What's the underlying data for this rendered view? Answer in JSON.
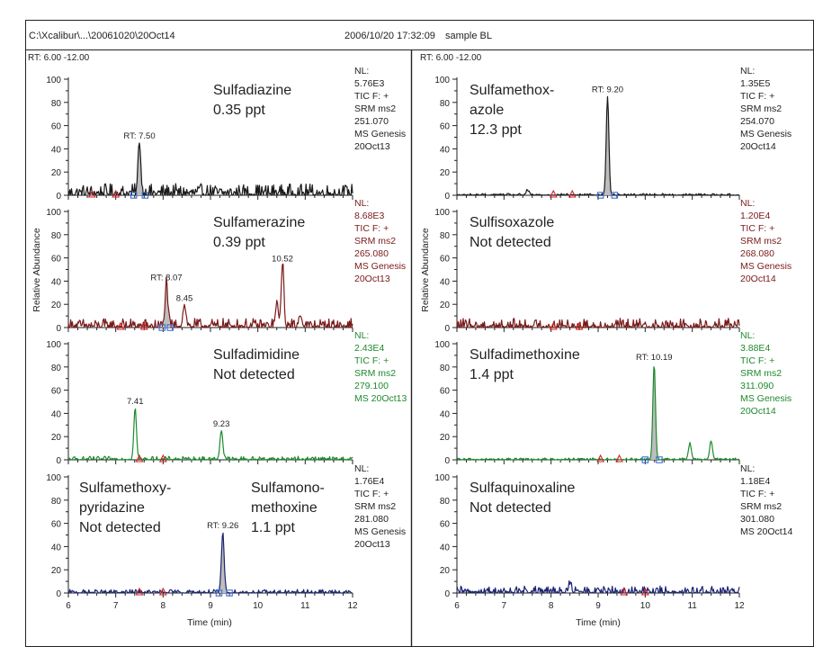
{
  "header": {
    "file_path": "C:\\Xcalibur\\...\\20061020\\20Oct14",
    "datetime": "2006/10/20 17:32:09",
    "sample": "sample BL"
  },
  "columns": [
    {
      "rt_range": "RT:  6.00 -12.00",
      "x_axis_title": "Time (min)",
      "y_axis_title": "Relative Abundance"
    },
    {
      "rt_range": "RT:  6.00 -12.00",
      "x_axis_title": "Time (min)",
      "y_axis_title": "Relative Abundance"
    }
  ],
  "colors": {
    "black": "#1a1a1a",
    "maroon": "#7a1a1a",
    "green": "#1e8a2e",
    "navy": "#1c2470",
    "marker_red": "#d62020",
    "marker_blue": "#3a6fd8",
    "peak_fill": "#bdbdbd"
  },
  "chart_data": [
    {
      "type": "line",
      "panel": "left-1",
      "color_key": "black",
      "compound_lines": [
        "Sulfadiazine",
        "0.35 ppt"
      ],
      "info_lines": [
        "NL:",
        "5.76E3",
        "TIC F: +",
        "SRM ms2",
        "251.070",
        "MS Genesis",
        "20Oct13"
      ],
      "xlim": [
        6,
        12
      ],
      "ylim": [
        0,
        100
      ],
      "x_ticks": [
        "6",
        "7",
        "8",
        "9",
        "10",
        "11",
        "12"
      ],
      "y_ticks": [
        "0",
        "20",
        "40",
        "60",
        "80",
        "100"
      ],
      "noise": 5,
      "peaks": [
        {
          "x": 7.5,
          "y": 45,
          "label": "RT: 7.50",
          "shaded": true
        }
      ],
      "red_markers": [
        6.5,
        7.0
      ],
      "blue_markers": [
        7.38,
        7.62
      ]
    },
    {
      "type": "line",
      "panel": "left-2",
      "color_key": "maroon",
      "compound_lines": [
        "Sulfamerazine",
        "0.39 ppt"
      ],
      "info_lines": [
        "NL:",
        "8.68E3",
        "TIC F: +",
        "SRM ms2",
        "265.080",
        "MS Genesis",
        "20Oct13"
      ],
      "xlim": [
        6,
        12
      ],
      "ylim": [
        0,
        100
      ],
      "x_ticks": [
        "6",
        "7",
        "8",
        "9",
        "10",
        "11",
        "12"
      ],
      "y_ticks": [
        "0",
        "20",
        "40",
        "60",
        "80",
        "100"
      ],
      "noise": 4,
      "peaks": [
        {
          "x": 8.07,
          "y": 37,
          "label": "RT: 8.07",
          "shaded": true
        },
        {
          "x": 8.45,
          "y": 19,
          "label": "8.45",
          "shaded": false
        },
        {
          "x": 10.52,
          "y": 53,
          "label": "10.52",
          "shaded": false
        },
        {
          "x": 10.4,
          "y": 18,
          "label": "",
          "shaded": false
        },
        {
          "x": 10.9,
          "y": 10,
          "label": "",
          "shaded": false
        }
      ],
      "red_markers": [
        7.1,
        7.6
      ],
      "blue_markers": [
        7.98,
        8.15
      ]
    },
    {
      "type": "line",
      "panel": "left-3",
      "color_key": "green",
      "compound_lines": [
        "Sulfadimidine",
        "Not detected"
      ],
      "info_lines": [
        "NL:",
        "2.43E4",
        "TIC F: +",
        "SRM ms2",
        "279.100",
        "MS 20Oct13"
      ],
      "xlim": [
        6,
        12
      ],
      "ylim": [
        0,
        100
      ],
      "x_ticks": [
        "6",
        "7",
        "8",
        "9",
        "10",
        "11",
        "12"
      ],
      "y_ticks": [
        "0",
        "20",
        "40",
        "60",
        "80",
        "100"
      ],
      "noise": 1.5,
      "peaks": [
        {
          "x": 7.41,
          "y": 44,
          "label": "7.41",
          "shaded": false
        },
        {
          "x": 9.23,
          "y": 25,
          "label": "9.23",
          "shaded": false
        }
      ],
      "red_markers": [
        7.5,
        8.0
      ],
      "blue_markers": []
    },
    {
      "type": "line",
      "panel": "left-4",
      "color_key": "navy",
      "compound_lines": [
        "Sulfamethoxy-",
        "pyridazine",
        "Not detected"
      ],
      "compound2_lines": [
        "Sulfamono-",
        "methoxine",
        "1.1 ppt"
      ],
      "info_lines": [
        "NL:",
        "1.76E4",
        "TIC F: +",
        "SRM ms2",
        "281.080",
        "MS Genesis",
        "20Oct13"
      ],
      "xlim": [
        6,
        12
      ],
      "ylim": [
        0,
        100
      ],
      "x_ticks": [
        "6",
        "7",
        "8",
        "9",
        "10",
        "11",
        "12"
      ],
      "y_ticks": [
        "0",
        "20",
        "40",
        "60",
        "80",
        "100"
      ],
      "noise": 1.5,
      "peaks": [
        {
          "x": 9.26,
          "y": 52,
          "label": "RT: 9.26",
          "shaded": true
        }
      ],
      "red_markers": [
        7.5,
        8.0
      ],
      "blue_markers": [
        9.18,
        9.4
      ]
    },
    {
      "type": "line",
      "panel": "right-1",
      "color_key": "black",
      "compound_lines": [
        "Sulfamethox-",
        "azole",
        "12.3 ppt"
      ],
      "info_lines": [
        "NL:",
        "1.35E5",
        "TIC F: +",
        "SRM ms2",
        "254.070",
        "MS Genesis",
        "20Oct14"
      ],
      "xlim": [
        6,
        12
      ],
      "ylim": [
        0,
        100
      ],
      "x_ticks": [
        "6",
        "7",
        "8",
        "9",
        "10",
        "11",
        "12"
      ],
      "y_ticks": [
        "0",
        "20",
        "40",
        "60",
        "80",
        "100"
      ],
      "noise": 0.8,
      "peaks": [
        {
          "x": 9.2,
          "y": 85,
          "label": "RT: 9.20",
          "shaded": true
        },
        {
          "x": 7.5,
          "y": 4,
          "label": "",
          "shaded": false
        }
      ],
      "red_markers": [
        8.05,
        8.45
      ],
      "blue_markers": [
        9.05,
        9.35
      ]
    },
    {
      "type": "line",
      "panel": "right-2",
      "color_key": "maroon",
      "compound_lines": [
        "Sulfisoxazole",
        "Not detected"
      ],
      "info_lines": [
        "NL:",
        "1.20E4",
        "TIC F: +",
        "SRM ms2",
        "268.080",
        "MS Genesis",
        "20Oct14"
      ],
      "xlim": [
        6,
        12
      ],
      "ylim": [
        0,
        100
      ],
      "x_ticks": [
        "6",
        "7",
        "8",
        "9",
        "10",
        "11",
        "12"
      ],
      "y_ticks": [
        "0",
        "20",
        "40",
        "60",
        "80",
        "100"
      ],
      "noise": 4,
      "peaks": [],
      "red_markers": [
        8.05,
        8.6
      ],
      "blue_markers": []
    },
    {
      "type": "line",
      "panel": "right-3",
      "color_key": "green",
      "compound_lines": [
        "Sulfadimethoxine",
        "1.4 ppt"
      ],
      "info_lines": [
        "NL:",
        "3.88E4",
        "TIC F: +",
        "SRM ms2",
        "311.090",
        "MS Genesis",
        "20Oct14"
      ],
      "xlim": [
        6,
        12
      ],
      "ylim": [
        0,
        100
      ],
      "x_ticks": [
        "6",
        "7",
        "8",
        "9",
        "10",
        "11",
        "12"
      ],
      "y_ticks": [
        "0",
        "20",
        "40",
        "60",
        "80",
        "100"
      ],
      "noise": 0.8,
      "peaks": [
        {
          "x": 10.19,
          "y": 82,
          "label": "RT: 10.19",
          "shaded": true
        },
        {
          "x": 10.95,
          "y": 14,
          "label": "",
          "shaded": false
        },
        {
          "x": 11.4,
          "y": 16,
          "label": "",
          "shaded": false
        }
      ],
      "red_markers": [
        9.05,
        9.45
      ],
      "blue_markers": [
        10.0,
        10.3
      ]
    },
    {
      "type": "line",
      "panel": "right-4",
      "color_key": "navy",
      "compound_lines": [
        "Sulfaquinoxaline",
        "Not detected"
      ],
      "info_lines": [
        "NL:",
        "1.18E4",
        "TIC F: +",
        "SRM ms2",
        "301.080",
        "MS 20Oct14"
      ],
      "xlim": [
        6,
        12
      ],
      "ylim": [
        0,
        100
      ],
      "x_ticks": [
        "6",
        "7",
        "8",
        "9",
        "10",
        "11",
        "12"
      ],
      "y_ticks": [
        "0",
        "20",
        "40",
        "60",
        "80",
        "100"
      ],
      "noise": 3,
      "peaks": [
        {
          "x": 8.4,
          "y": 7,
          "label": "",
          "shaded": false
        }
      ],
      "red_markers": [
        9.55,
        10.0
      ],
      "blue_markers": []
    }
  ]
}
